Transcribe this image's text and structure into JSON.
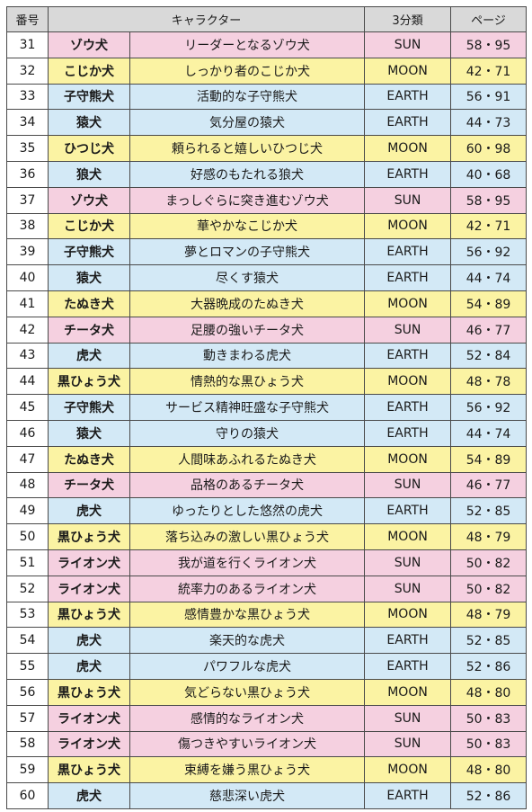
{
  "header": {
    "num": "番号",
    "character": "キャラクター",
    "type": "3分類",
    "page": "ページ"
  },
  "colors": {
    "SUN": "#f5d0e0",
    "MOON": "#fbf3a3",
    "EARTH": "#d3e9f6",
    "header": "#d9d9d9"
  },
  "rows": [
    {
      "num": "31",
      "animal": "ゾウ犬",
      "character": "リーダーとなるゾウ犬",
      "type": "SUN",
      "page": "58・95"
    },
    {
      "num": "32",
      "animal": "こじか犬",
      "character": "しっかり者のこじか犬",
      "type": "MOON",
      "page": "42・71"
    },
    {
      "num": "33",
      "animal": "子守熊犬",
      "character": "活動的な子守熊犬",
      "type": "EARTH",
      "page": "56・91"
    },
    {
      "num": "34",
      "animal": "猿犬",
      "character": "気分屋の猿犬",
      "type": "EARTH",
      "page": "44・73"
    },
    {
      "num": "35",
      "animal": "ひつじ犬",
      "character": "頼られると嬉しいひつじ犬",
      "type": "MOON",
      "page": "60・98"
    },
    {
      "num": "36",
      "animal": "狼犬",
      "character": "好感のもたれる狼犬",
      "type": "EARTH",
      "page": "40・68"
    },
    {
      "num": "37",
      "animal": "ゾウ犬",
      "character": "まっしぐらに突き進むゾウ犬",
      "type": "SUN",
      "page": "58・95"
    },
    {
      "num": "38",
      "animal": "こじか犬",
      "character": "華やかなこじか犬",
      "type": "MOON",
      "page": "42・71"
    },
    {
      "num": "39",
      "animal": "子守熊犬",
      "character": "夢とロマンの子守熊犬",
      "type": "EARTH",
      "page": "56・92"
    },
    {
      "num": "40",
      "animal": "猿犬",
      "character": "尽くす猿犬",
      "type": "EARTH",
      "page": "44・74"
    },
    {
      "num": "41",
      "animal": "たぬき犬",
      "character": "大器晩成のたぬき犬",
      "type": "MOON",
      "page": "54・89"
    },
    {
      "num": "42",
      "animal": "チータ犬",
      "character": "足腰の強いチータ犬",
      "type": "SUN",
      "page": "46・77"
    },
    {
      "num": "43",
      "animal": "虎犬",
      "character": "動きまわる虎犬",
      "type": "EARTH",
      "page": "52・84"
    },
    {
      "num": "44",
      "animal": "黒ひょう犬",
      "character": "情熱的な黒ひょう犬",
      "type": "MOON",
      "page": "48・78"
    },
    {
      "num": "45",
      "animal": "子守熊犬",
      "character": "サービス精神旺盛な子守熊犬",
      "type": "EARTH",
      "page": "56・92"
    },
    {
      "num": "46",
      "animal": "猿犬",
      "character": "守りの猿犬",
      "type": "EARTH",
      "page": "44・74"
    },
    {
      "num": "47",
      "animal": "たぬき犬",
      "character": "人間味あふれるたぬき犬",
      "type": "MOON",
      "page": "54・89"
    },
    {
      "num": "48",
      "animal": "チータ犬",
      "character": "品格のあるチータ犬",
      "type": "SUN",
      "page": "46・77"
    },
    {
      "num": "49",
      "animal": "虎犬",
      "character": "ゆったりとした悠然の虎犬",
      "type": "EARTH",
      "page": "52・85"
    },
    {
      "num": "50",
      "animal": "黒ひょう犬",
      "character": "落ち込みの激しい黒ひょう犬",
      "type": "MOON",
      "page": "48・79"
    },
    {
      "num": "51",
      "animal": "ライオン犬",
      "character": "我が道を行くライオン犬",
      "type": "SUN",
      "page": "50・82"
    },
    {
      "num": "52",
      "animal": "ライオン犬",
      "character": "統率力のあるライオン犬",
      "type": "SUN",
      "page": "50・82"
    },
    {
      "num": "53",
      "animal": "黒ひょう犬",
      "character": "感情豊かな黒ひょう犬",
      "type": "MOON",
      "page": "48・79"
    },
    {
      "num": "54",
      "animal": "虎犬",
      "character": "楽天的な虎犬",
      "type": "EARTH",
      "page": "52・85"
    },
    {
      "num": "55",
      "animal": "虎犬",
      "character": "パワフルな虎犬",
      "type": "EARTH",
      "page": "52・86"
    },
    {
      "num": "56",
      "animal": "黒ひょう犬",
      "character": "気どらない黒ひょう犬",
      "type": "MOON",
      "page": "48・80"
    },
    {
      "num": "57",
      "animal": "ライオン犬",
      "character": "感情的なライオン犬",
      "type": "SUN",
      "page": "50・83"
    },
    {
      "num": "58",
      "animal": "ライオン犬",
      "character": "傷つきやすいライオン犬",
      "type": "SUN",
      "page": "50・83"
    },
    {
      "num": "59",
      "animal": "黒ひょう犬",
      "character": "束縛を嫌う黒ひょう犬",
      "type": "MOON",
      "page": "48・80"
    },
    {
      "num": "60",
      "animal": "虎犬",
      "character": "慈悲深い虎犬",
      "type": "EARTH",
      "page": "52・86"
    }
  ]
}
